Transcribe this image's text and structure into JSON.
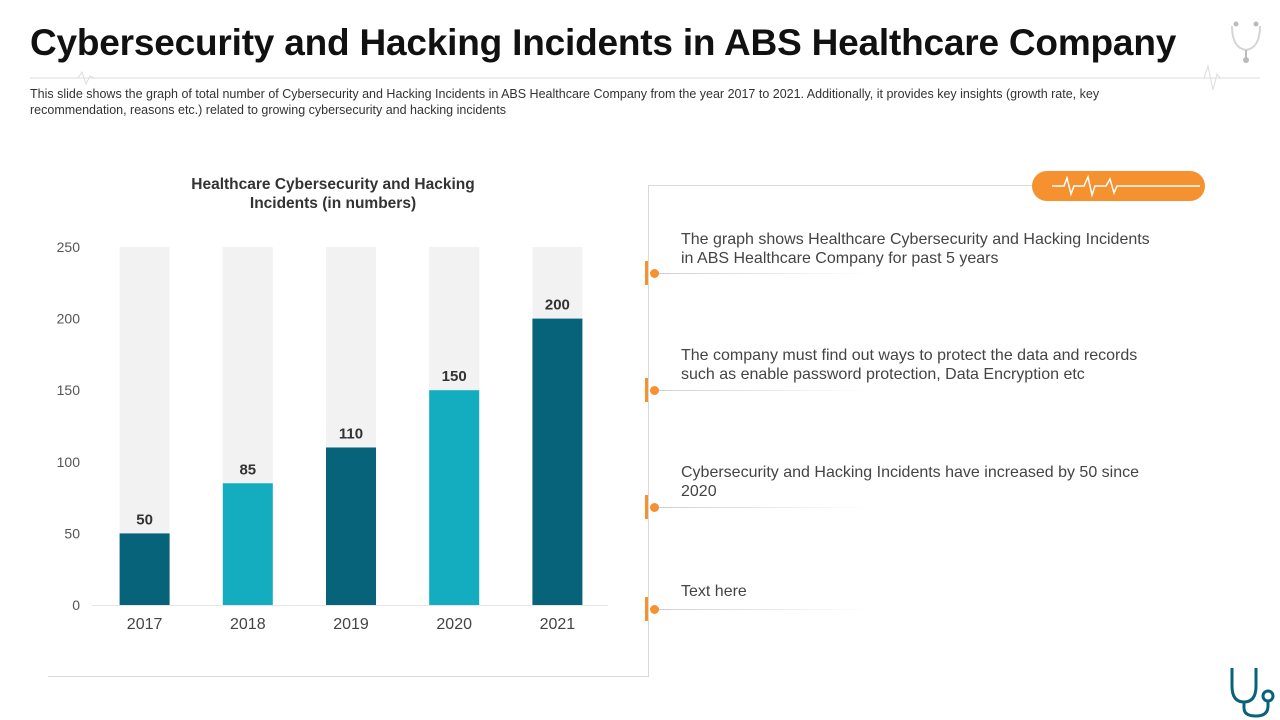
{
  "header": {
    "title": "Cybersecurity and Hacking Incidents in ABS Healthcare Company",
    "subtitle": "This slide shows the graph of total number of Cybersecurity and Hacking Incidents in ABS Healthcare Company from the year 2017 to 2021. Additionally, it provides key insights (growth rate, key recommendation, reasons etc.) related to growing cybersecurity and hacking incidents"
  },
  "chart_data": {
    "type": "bar",
    "title": "Healthcare Cybersecurity and Hacking Incidents (in numbers)",
    "categories": [
      "2017",
      "2018",
      "2019",
      "2020",
      "2021"
    ],
    "values": [
      50,
      85,
      110,
      150,
      200
    ],
    "ylim": [
      0,
      250
    ],
    "yticks": [
      0,
      50,
      100,
      150,
      200,
      250
    ],
    "grid": false,
    "colors": {
      "dark": "#07637a",
      "light": "#13adbf",
      "background_bar": "#f2f2f2"
    }
  },
  "insights": [
    {
      "text": "The graph shows Healthcare Cybersecurity and Hacking Incidents in ABS Healthcare Company for past 5 years"
    },
    {
      "text": "The company must find out ways to protect the data and records such as enable password protection, Data Encryption etc"
    },
    {
      "text": "Cybersecurity and Hacking Incidents have increased by 50 since 2020"
    },
    {
      "text": "Text here"
    }
  ],
  "decorations": {
    "accent_color": "#f5922f",
    "icons": [
      "heartbeat-pulse-icon",
      "medical-device-icon",
      "stethoscope-icon"
    ]
  }
}
